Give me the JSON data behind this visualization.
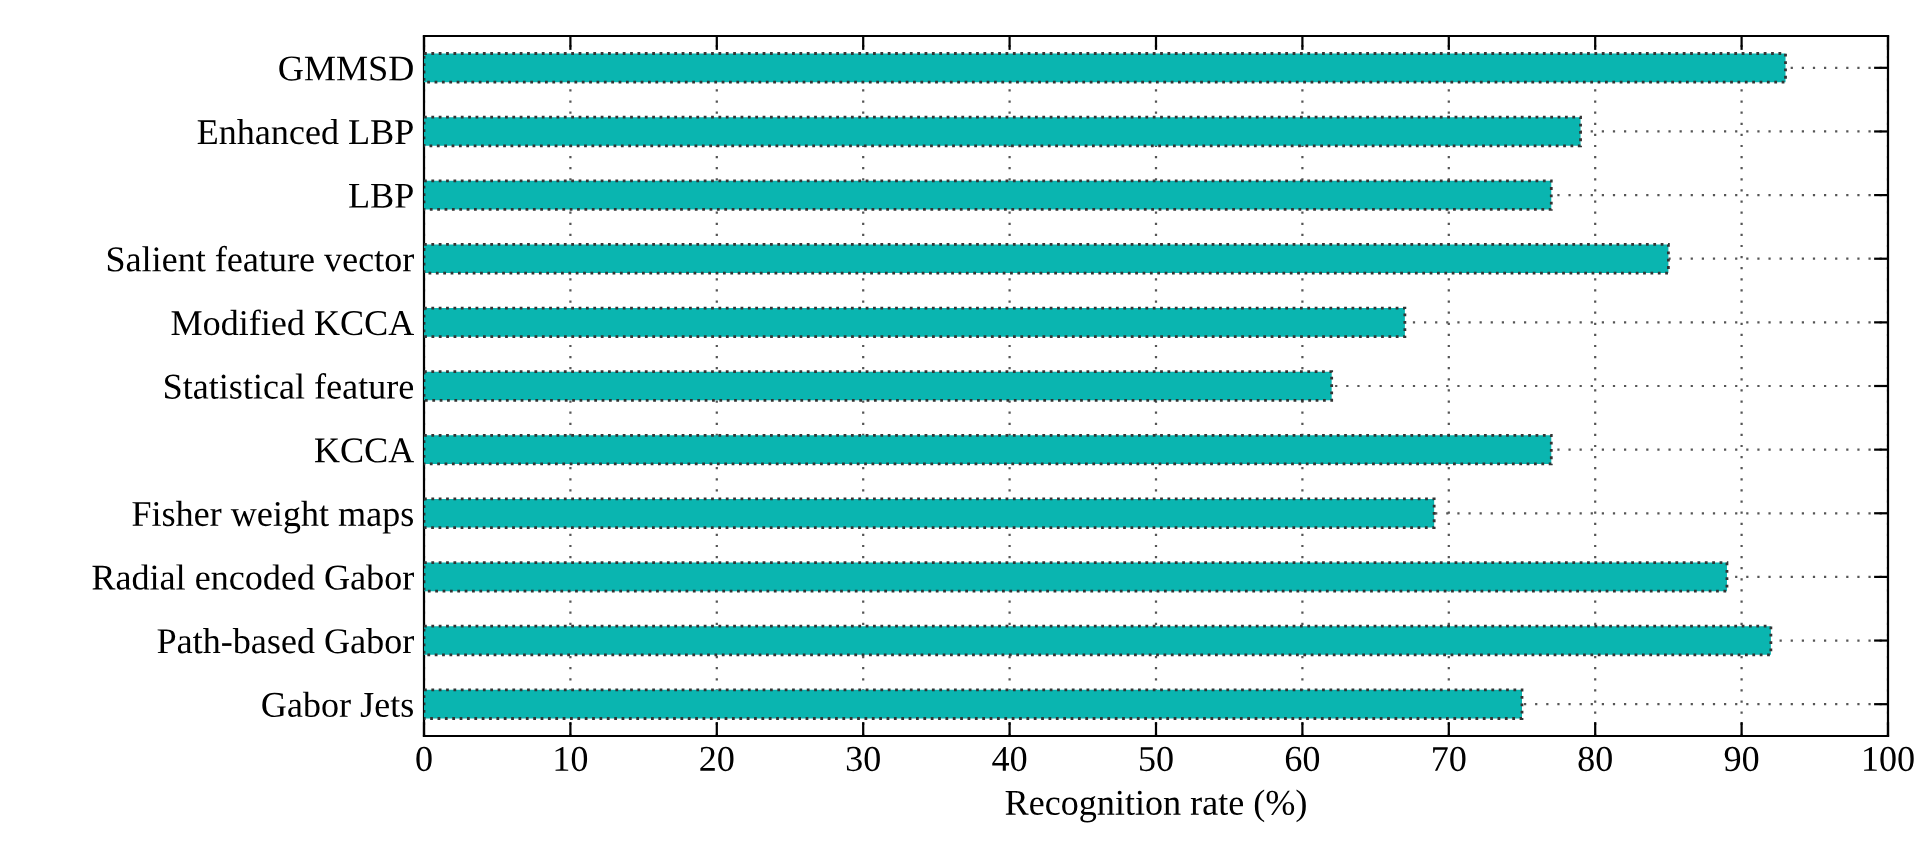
{
  "chart_data": {
    "type": "bar",
    "orientation": "horizontal",
    "xlabel": "Recognition rate (%)",
    "categories": [
      "GMMSD",
      "Enhanced LBP",
      "LBP",
      "Salient feature vector",
      "Modified KCCA",
      "Statistical feature",
      "KCCA",
      "Fisher weight maps",
      "Radial encoded Gabor",
      "Path-based Gabor",
      "Gabor Jets"
    ],
    "values": [
      93,
      79,
      77,
      85,
      67,
      62,
      77,
      69,
      89,
      92,
      75
    ],
    "color": "#0ab5b0",
    "xlim": [
      0,
      100
    ],
    "xticks": [
      0,
      10,
      20,
      30,
      40,
      50,
      60,
      70,
      80,
      90,
      100
    ],
    "grid": true
  }
}
